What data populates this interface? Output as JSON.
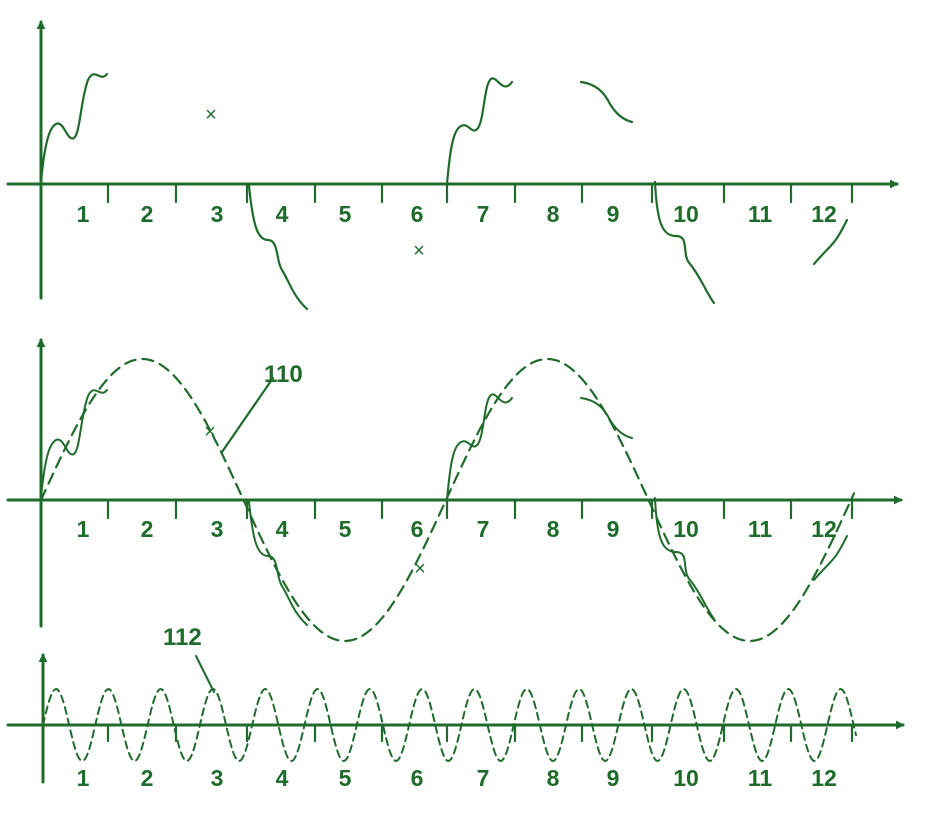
{
  "colors": {
    "ink": "#1f6b2b",
    "background": "#ffffff"
  },
  "panels": [
    {
      "id": "top",
      "description_free": true,
      "interval_labels": [
        "1",
        "2",
        "3",
        "4",
        "5",
        "6",
        "7",
        "8",
        "9",
        "10",
        "11",
        "12"
      ]
    },
    {
      "id": "middle",
      "interval_labels": [
        "1",
        "2",
        "3",
        "4",
        "5",
        "6",
        "7",
        "8",
        "9",
        "10",
        "11",
        "12"
      ],
      "reference_label": "110"
    },
    {
      "id": "bottom",
      "interval_labels": [
        "1",
        "2",
        "3",
        "4",
        "5",
        "6",
        "7",
        "8",
        "9",
        "10",
        "11",
        "12"
      ],
      "reference_label": "112"
    }
  ]
}
